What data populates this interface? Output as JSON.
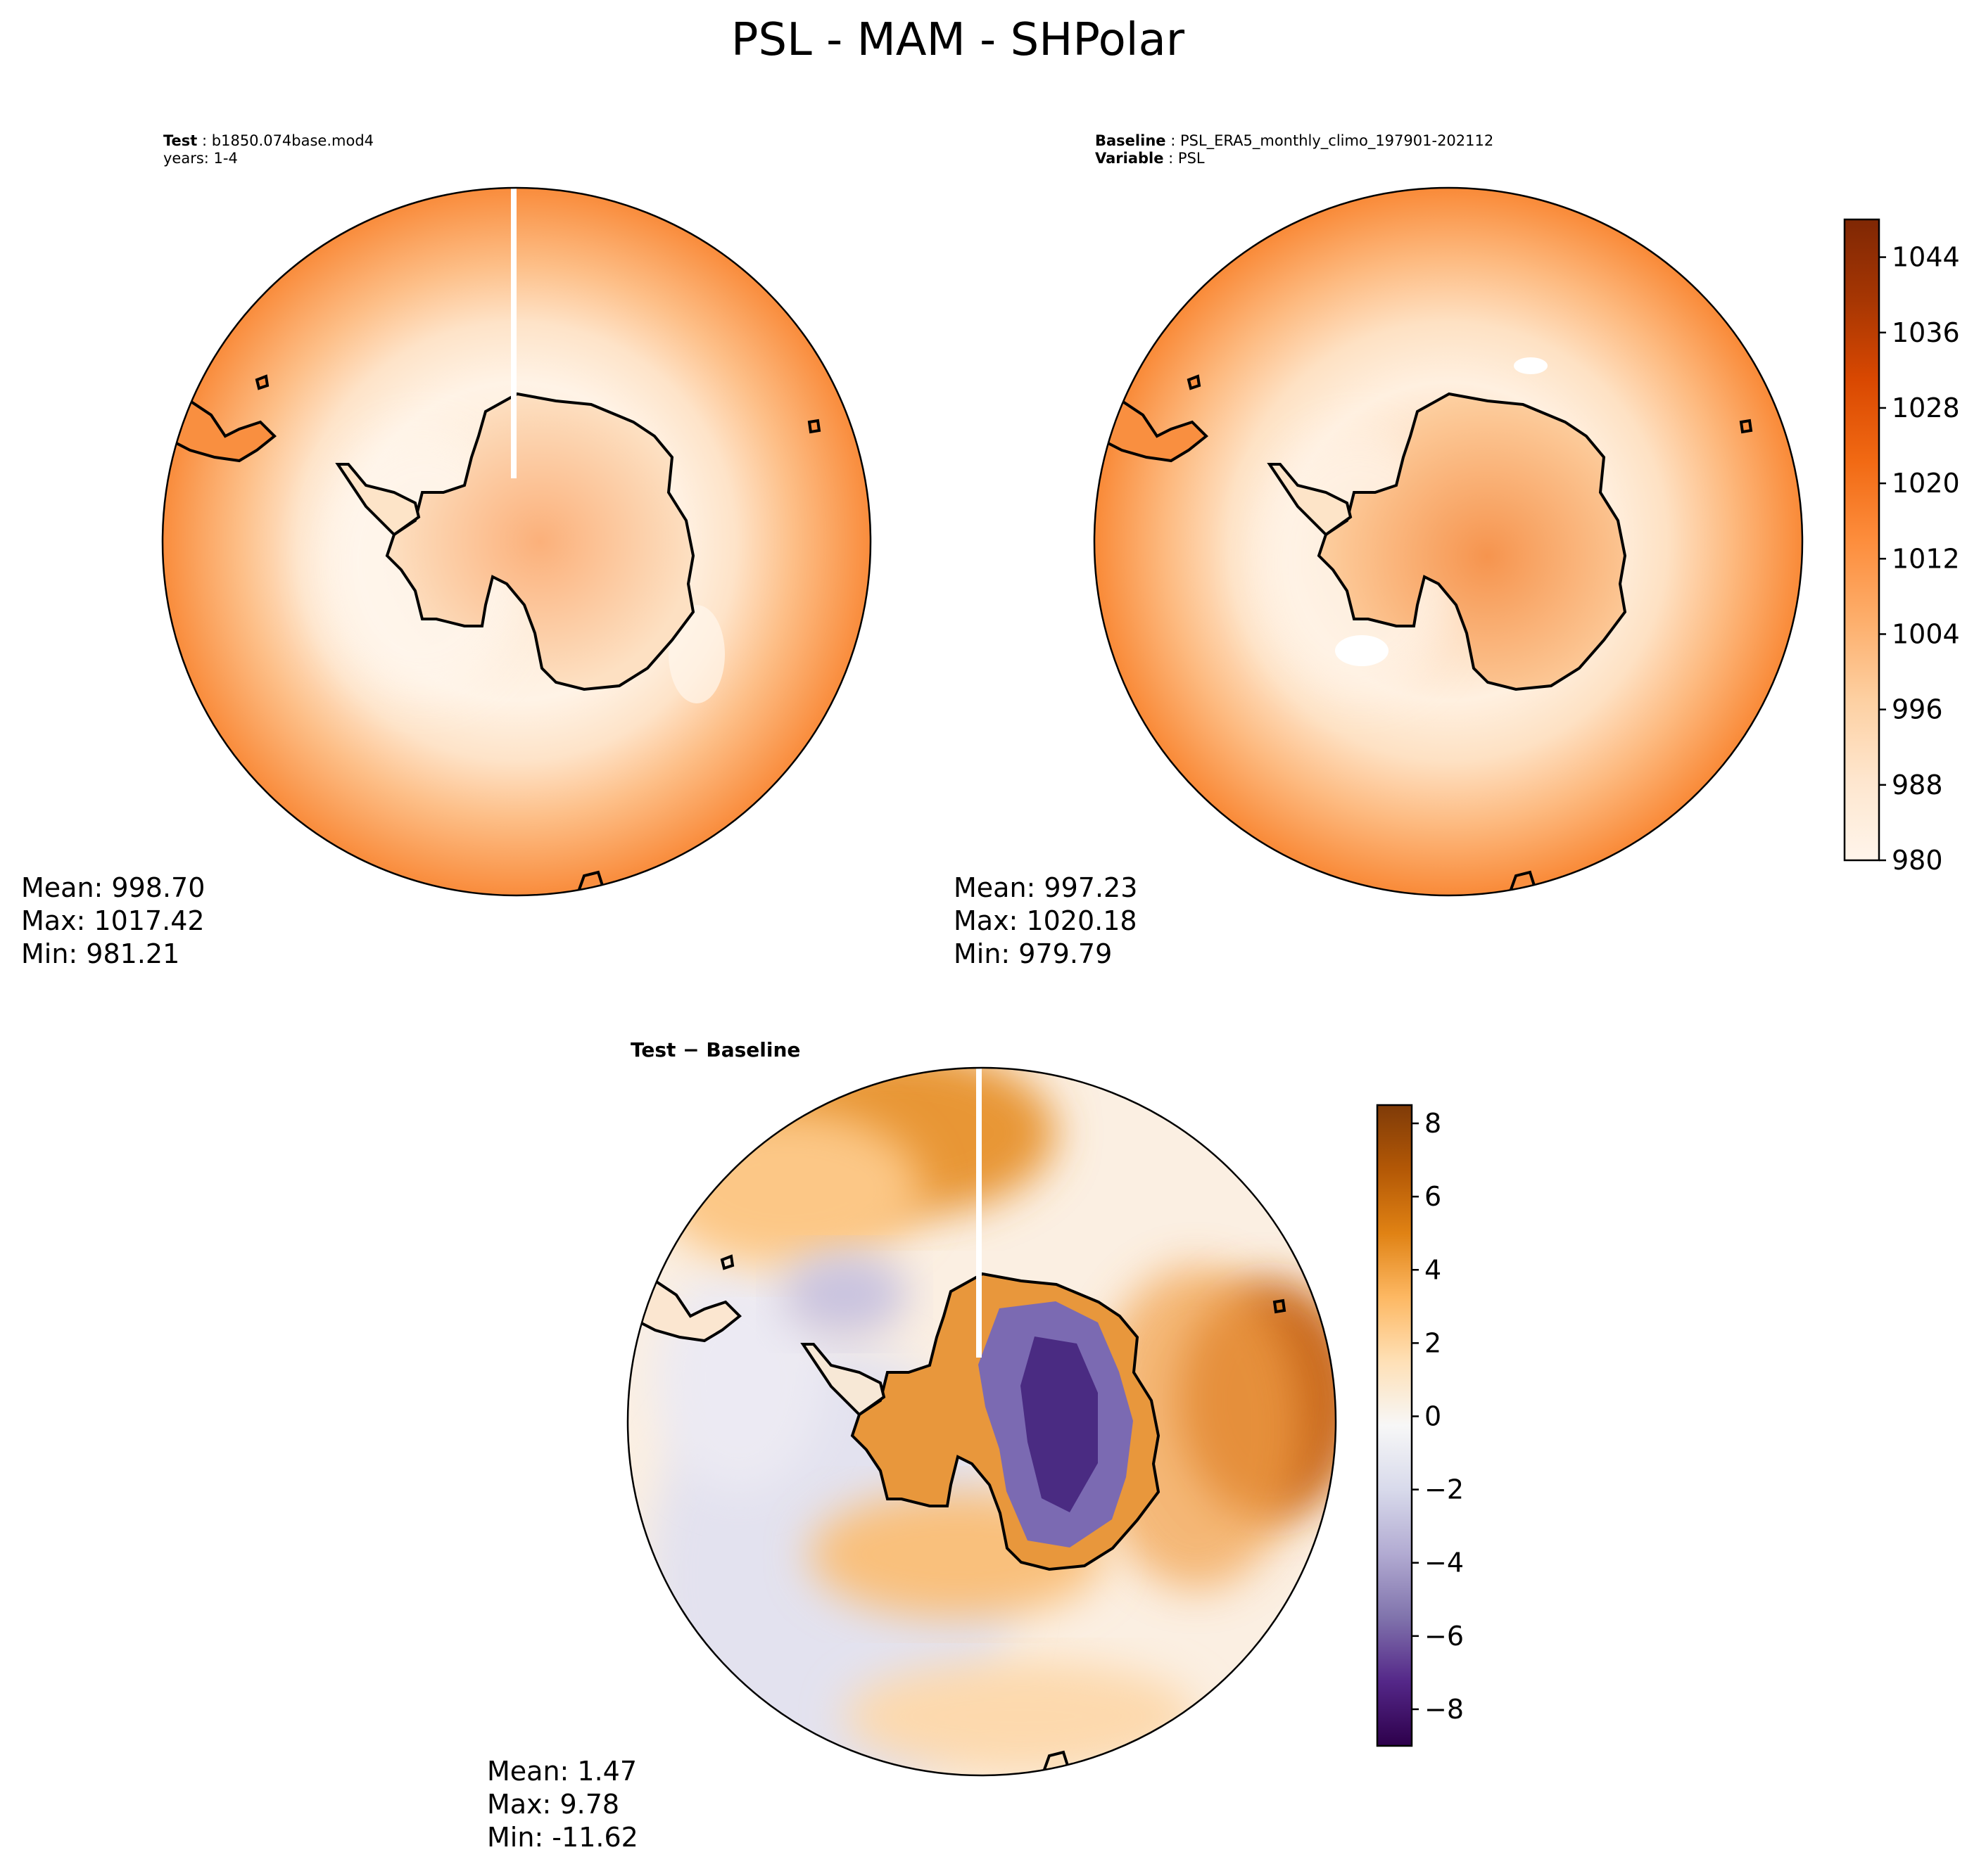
{
  "figure": {
    "title": "PSL - MAM - SHPolar"
  },
  "chart_data": [
    {
      "type": "heatmap",
      "projection": "south-polar-stereographic",
      "field": "PSL",
      "header": [
        {
          "label": "Test",
          "value": "b1850.074base.mod4"
        },
        {
          "label": "",
          "value": "years: 1-4"
        }
      ],
      "stats": {
        "mean": "Mean: 998.70",
        "max": "Max: 1017.42",
        "min": "Min: 981.21"
      },
      "pattern": "lower pressure ring over the sub-polar ocean, higher pressure over the Antarctic interior and towards the outer edge",
      "colormap": "Oranges"
    },
    {
      "type": "heatmap",
      "projection": "south-polar-stereographic",
      "field": "PSL",
      "header": [
        {
          "label": "Baseline",
          "value": "PSL_ERA5_monthly_climo_197901-202112"
        },
        {
          "label": "Variable",
          "value": "PSL"
        }
      ],
      "stats": {
        "mean": "Mean: 997.23",
        "max": "Max: 1020.18",
        "min": "Min: 979.79"
      },
      "colormap": "Oranges",
      "colorbar": {
        "range": [
          980,
          1048
        ],
        "ticks": [
          "980",
          "988",
          "996",
          "1004",
          "1012",
          "1020",
          "1028",
          "1036",
          "1044"
        ],
        "colors": [
          "#fff5eb",
          "#fee6ce",
          "#fdd0a2",
          "#fdae6b",
          "#fd8d3c",
          "#f16913",
          "#d94801",
          "#a63603",
          "#7f2704"
        ]
      }
    },
    {
      "type": "heatmap",
      "projection": "south-polar-stereographic",
      "field": "PSL difference",
      "header": [
        {
          "label": "Test − Baseline",
          "value": ""
        }
      ],
      "stats": {
        "mean": "Mean:  1.47",
        "max": "Max:  9.78",
        "min": "Min: -11.62"
      },
      "pattern": "positive anomalies over the Amundsen/Bellingshausen sector and Southern Indian Ocean, negative anomalies over East Antarctic interior and Weddell sector",
      "colormap": "PuOr_r",
      "colorbar": {
        "range": [
          -9,
          8.5
        ],
        "ticks": [
          "−8",
          "−6",
          "−4",
          "−2",
          "0",
          "2",
          "4",
          "6",
          "8"
        ],
        "colors": [
          "#2d004b",
          "#542788",
          "#8073ac",
          "#b2abd2",
          "#d8daeb",
          "#f7f7f7",
          "#fee0b6",
          "#fdb863",
          "#e08214",
          "#b35806",
          "#7f3b08"
        ]
      }
    }
  ]
}
